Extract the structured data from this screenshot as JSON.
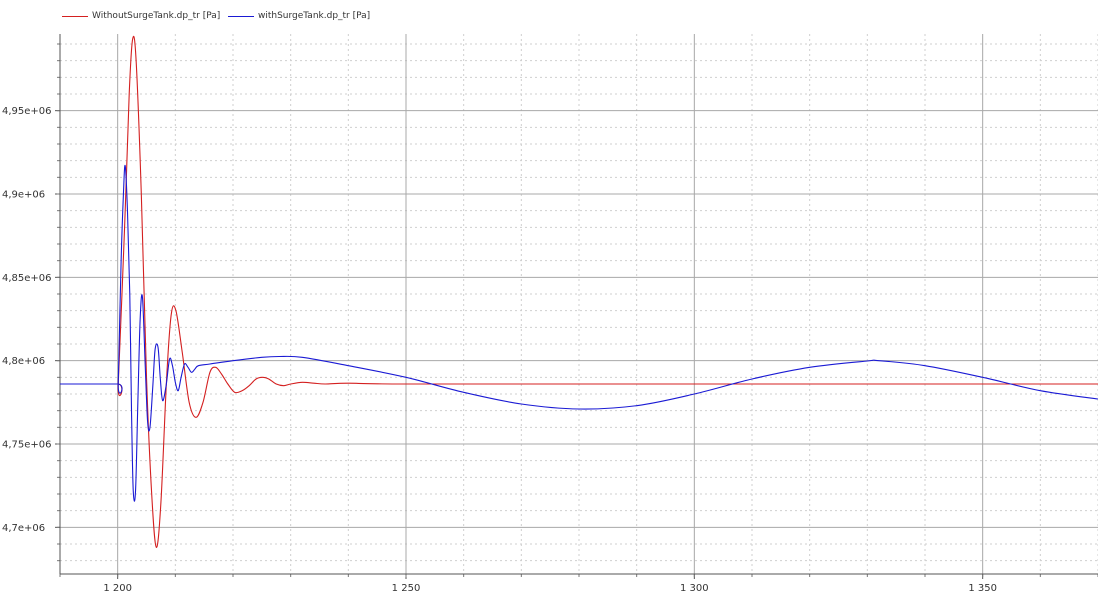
{
  "window": {},
  "legend": {
    "items": [
      {
        "label": "WithoutSurgeTank.dp_tr [Pa]",
        "color": "#d42020"
      },
      {
        "label": "withSurgeTank.dp_tr [Pa]",
        "color": "#1a1ad4"
      }
    ]
  },
  "chart_data": {
    "type": "line",
    "title": "",
    "xlabel": "",
    "ylabel": "",
    "xlim": [
      1190,
      1370
    ],
    "ylim": [
      4672000,
      4996000
    ],
    "grid": true,
    "legend_position": "top-left",
    "x_ticks": [
      1200,
      1250,
      1300,
      1350
    ],
    "x_tick_labels": [
      "1 200",
      "1 250",
      "1 300",
      "1 350"
    ],
    "y_ticks": [
      4700000,
      4750000,
      4800000,
      4850000,
      4900000,
      4950000
    ],
    "y_tick_labels": [
      "4,7e+06",
      "4,75e+06",
      "4,8e+06",
      "4,85e+06",
      "4,9e+06",
      "4,95e+06"
    ],
    "series": [
      {
        "name": "WithoutSurgeTank.dp_tr [Pa]",
        "color": "#d42020",
        "x": [
          1190,
          1200,
          1200.1,
          1201.2,
          1202.0,
          1202.6,
          1203.2,
          1204.1,
          1205.0,
          1205.9,
          1206.7,
          1207.5,
          1208.5,
          1209.3,
          1210.1,
          1211.2,
          1212.4,
          1213.6,
          1214.8,
          1216.0,
          1217.0,
          1218.0,
          1219.1,
          1220.3,
          1221.6,
          1222.8,
          1224.0,
          1225.1,
          1226.2,
          1227.5,
          1228.8,
          1230.0,
          1232.0,
          1234.0,
          1236.0,
          1240.0,
          1250.0,
          1300.0,
          1370.0
        ],
        "y": [
          4786000,
          4786000,
          4786000,
          4880000,
          4960000,
          4993000,
          4980000,
          4900000,
          4790000,
          4720000,
          4688000,
          4715000,
          4790000,
          4828000,
          4830000,
          4805000,
          4775000,
          4766000,
          4775000,
          4793000,
          4796000,
          4792000,
          4786000,
          4781000,
          4782000,
          4785000,
          4789000,
          4790000,
          4789000,
          4786000,
          4785000,
          4786000,
          4787000,
          4786500,
          4786000,
          4786500,
          4786000,
          4786000,
          4786000
        ]
      },
      {
        "name": "withSurgeTank.dp_tr [Pa]",
        "color": "#1a1ad4",
        "x": [
          1190,
          1200,
          1200.1,
          1200.6,
          1201.0,
          1201.3,
          1201.7,
          1202.1,
          1202.4,
          1202.7,
          1203.1,
          1203.5,
          1203.9,
          1204.3,
          1204.8,
          1205.2,
          1205.6,
          1206.1,
          1206.5,
          1207.0,
          1207.4,
          1207.8,
          1208.4,
          1209.0,
          1209.5,
          1210.0,
          1210.5,
          1211.0,
          1211.6,
          1212.2,
          1212.8,
          1213.4,
          1214.0,
          1216.0,
          1220.0,
          1225.0,
          1228.0,
          1232.0,
          1240.0,
          1250.0,
          1260.0,
          1270.0,
          1280.0,
          1290.0,
          1300.0,
          1310.0,
          1320.0,
          1330.0,
          1332.0,
          1340.0,
          1350.0,
          1360.0,
          1370.0
        ],
        "y": [
          4786000,
          4786000,
          4786000,
          4860000,
          4900000,
          4917000,
          4890000,
          4840000,
          4770000,
          4722000,
          4722000,
          4775000,
          4825000,
          4838000,
          4795000,
          4763000,
          4760000,
          4785000,
          4807000,
          4808000,
          4789000,
          4776000,
          4785000,
          4801000,
          4797000,
          4787000,
          4782000,
          4790000,
          4798000,
          4796000,
          4793000,
          4795000,
          4797000,
          4798000,
          4800000,
          4802000,
          4802500,
          4802000,
          4797000,
          4790000,
          4781000,
          4774000,
          4771000,
          4773000,
          4780000,
          4789000,
          4796000,
          4799800,
          4800000,
          4797000,
          4790000,
          4782000,
          4777000
        ]
      }
    ]
  }
}
